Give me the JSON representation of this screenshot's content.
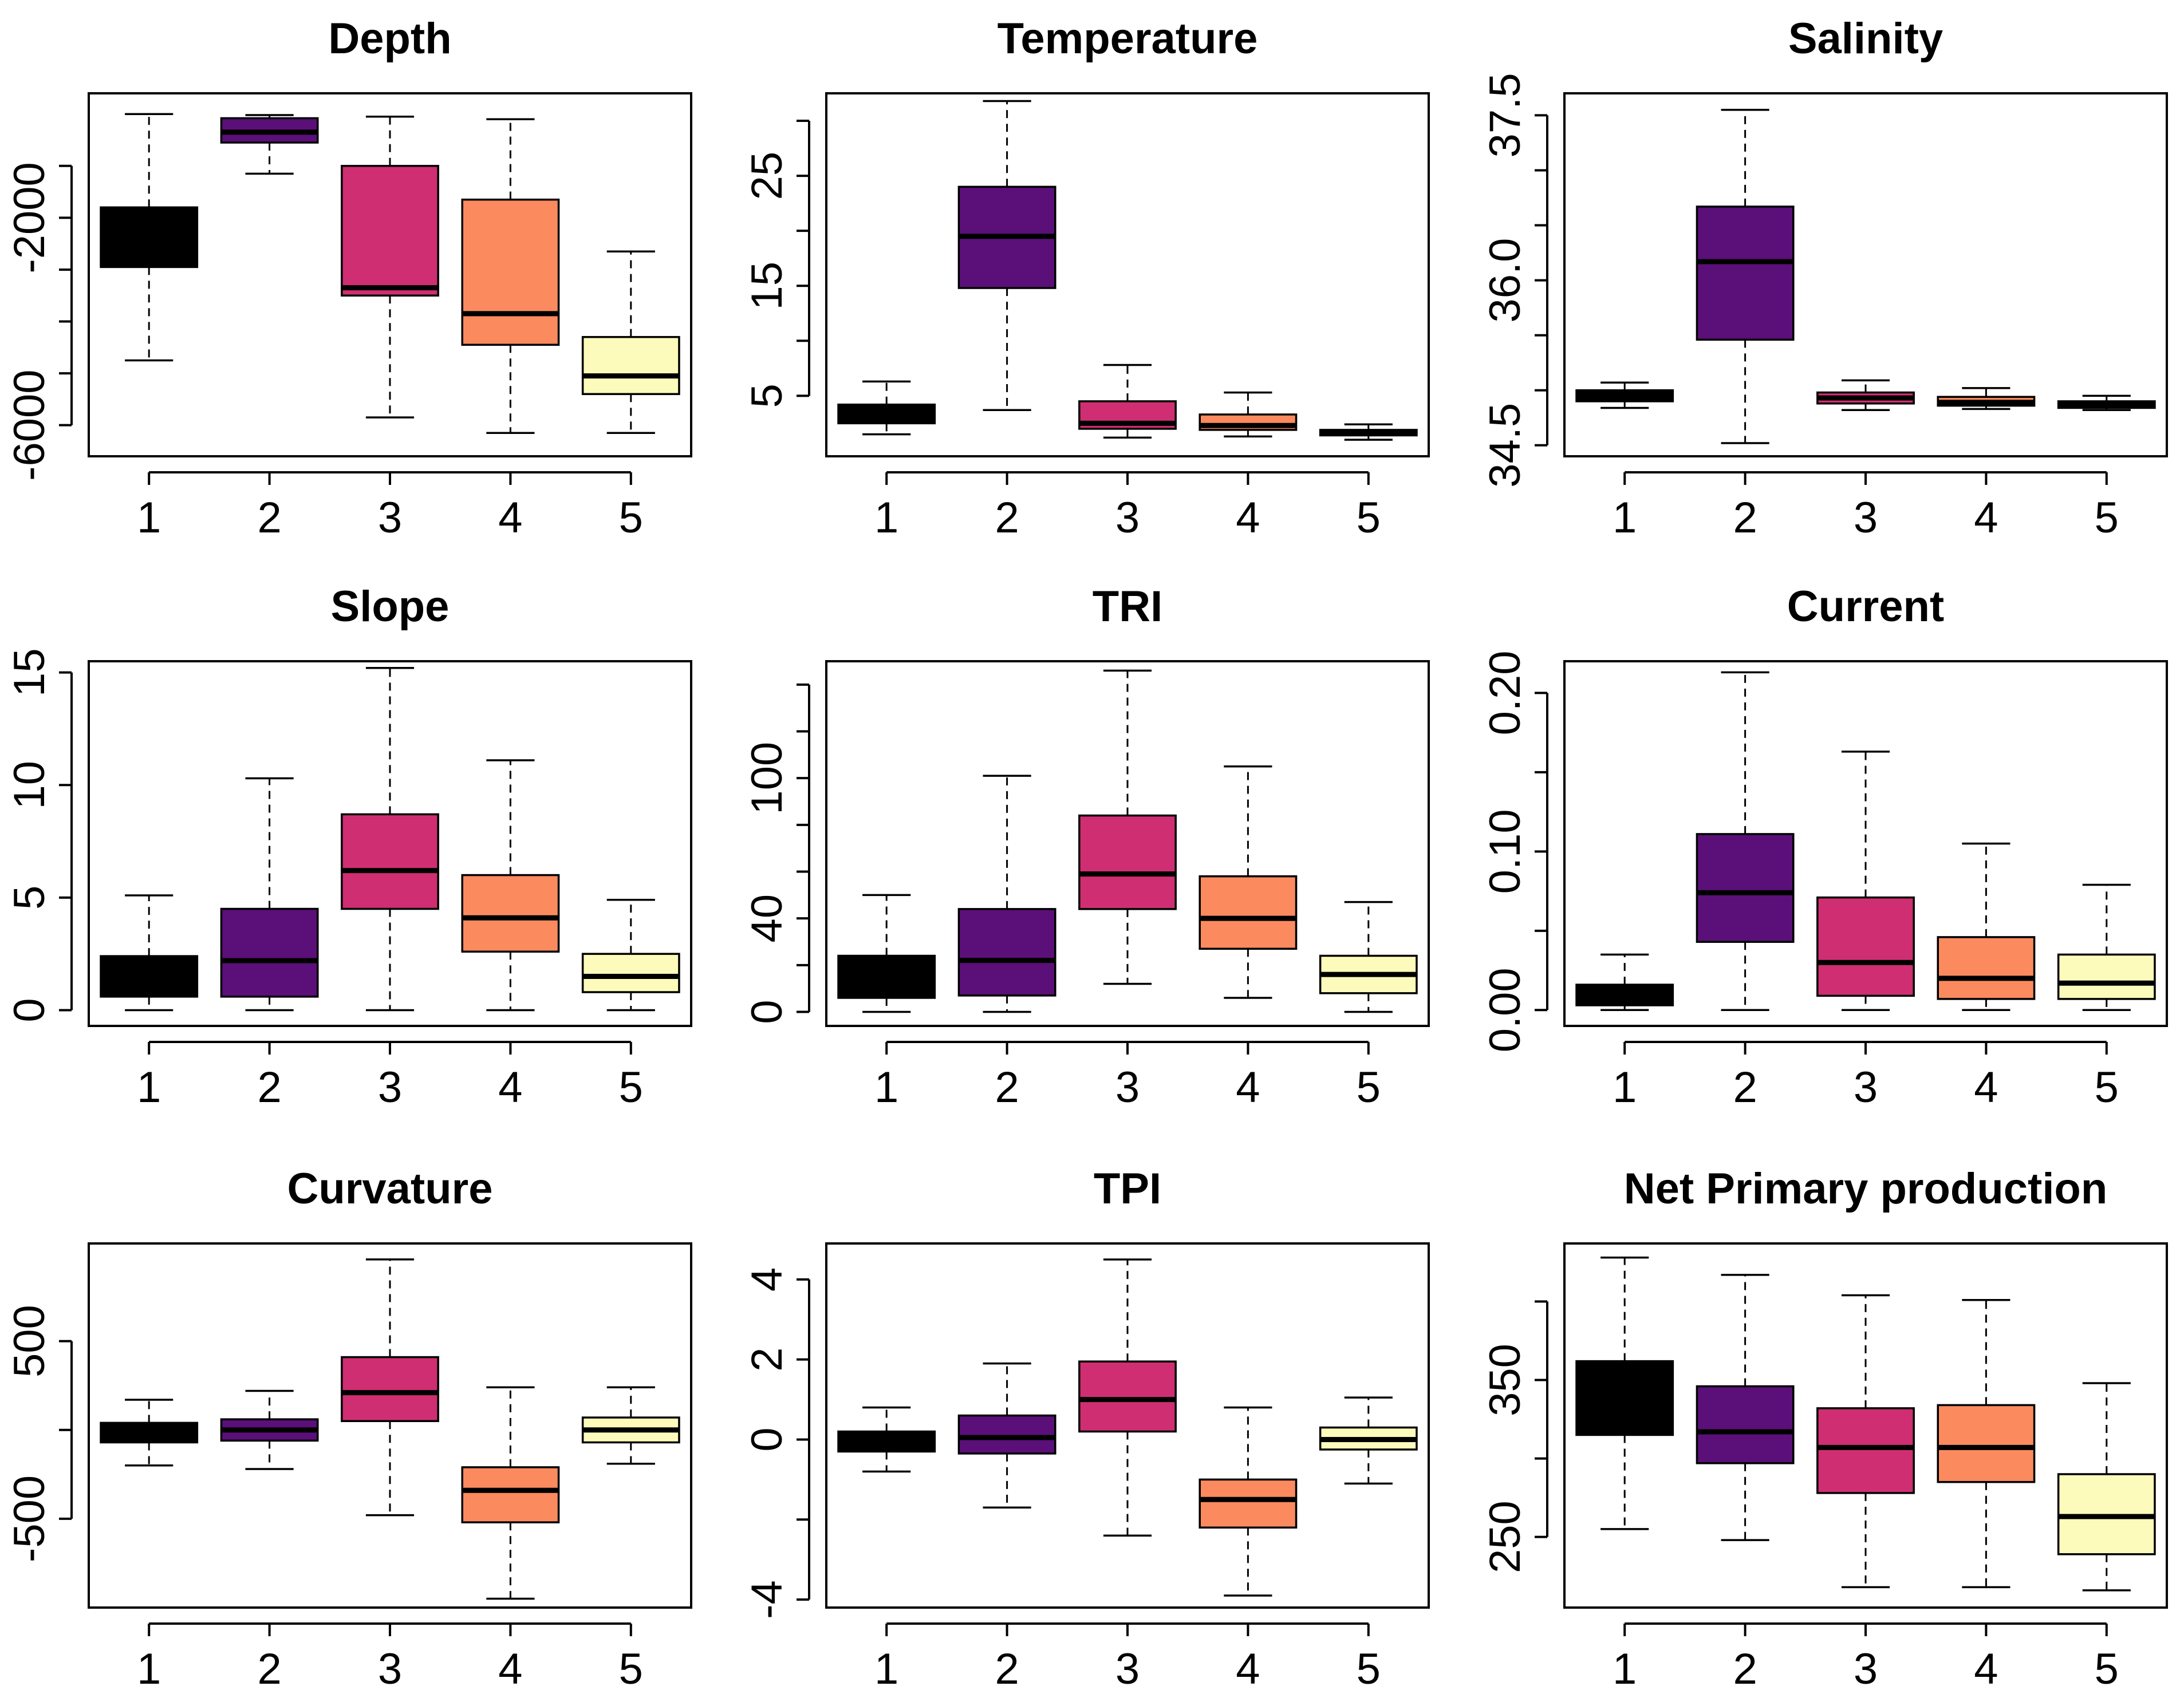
{
  "palette": [
    "#000000",
    "#5b0f78",
    "#cf2f72",
    "#fb8a5e",
    "#fcfbbb"
  ],
  "chart_data": [
    {
      "type": "boxplot",
      "title": "Depth",
      "categories": [
        "1",
        "2",
        "3",
        "4",
        "5"
      ],
      "ylim": [
        -6600,
        400
      ],
      "yticks": [
        -6000,
        -5000,
        -4000,
        -3000,
        -2000,
        -1000
      ],
      "ytick_labels": [
        "-6000",
        "",
        "",
        "",
        "-2000",
        ""
      ],
      "boxes": [
        {
          "min": -4750,
          "q1": -2950,
          "median": -2500,
          "q3": -1800,
          "max": 0
        },
        {
          "min": -1150,
          "q1": -550,
          "median": -350,
          "q3": -80,
          "max": -20
        },
        {
          "min": -5850,
          "q1": -3500,
          "median": -3350,
          "q3": -1000,
          "max": -50
        },
        {
          "min": -6150,
          "q1": -4450,
          "median": -3850,
          "q3": -1650,
          "max": -100
        },
        {
          "min": -6150,
          "q1": -5400,
          "median": -5050,
          "q3": -4300,
          "max": -2650
        }
      ]
    },
    {
      "type": "boxplot",
      "title": "Temperature",
      "categories": [
        "1",
        "2",
        "3",
        "4",
        "5"
      ],
      "ylim": [
        -0.5,
        32.5
      ],
      "yticks": [
        5,
        10,
        15,
        20,
        25,
        30
      ],
      "ytick_labels": [
        "5",
        "",
        "15",
        "",
        "25",
        ""
      ],
      "boxes": [
        {
          "min": 1.5,
          "q1": 2.5,
          "median": 3.5,
          "q3": 4.2,
          "max": 6.3
        },
        {
          "min": 3.7,
          "q1": 14.8,
          "median": 19.5,
          "q3": 24,
          "max": 31.8
        },
        {
          "min": 1.2,
          "q1": 2,
          "median": 2.5,
          "q3": 4.5,
          "max": 7.8
        },
        {
          "min": 1.3,
          "q1": 1.9,
          "median": 2.3,
          "q3": 3.3,
          "max": 5.3
        },
        {
          "min": 1,
          "q1": 1.4,
          "median": 1.6,
          "q3": 1.9,
          "max": 2.4
        }
      ]
    },
    {
      "type": "boxplot",
      "title": "Salinity",
      "categories": [
        "1",
        "2",
        "3",
        "4",
        "5"
      ],
      "ylim": [
        34.4,
        37.7
      ],
      "yticks": [
        34.5,
        35.0,
        35.5,
        36.0,
        36.5,
        37.0,
        37.5
      ],
      "ytick_labels": [
        "34.5",
        "",
        "",
        "36.0",
        "",
        "",
        "37.5"
      ],
      "boxes": [
        {
          "min": 34.84,
          "q1": 34.9,
          "median": 34.96,
          "q3": 35.0,
          "max": 35.07
        },
        {
          "min": 34.52,
          "q1": 35.46,
          "median": 36.17,
          "q3": 36.67,
          "max": 37.55
        },
        {
          "min": 34.82,
          "q1": 34.88,
          "median": 34.93,
          "q3": 34.98,
          "max": 35.09
        },
        {
          "min": 34.83,
          "q1": 34.86,
          "median": 34.89,
          "q3": 34.94,
          "max": 35.02
        },
        {
          "min": 34.82,
          "q1": 34.84,
          "median": 34.87,
          "q3": 34.9,
          "max": 34.95
        }
      ]
    },
    {
      "type": "boxplot",
      "title": "Slope",
      "categories": [
        "1",
        "2",
        "3",
        "4",
        "5"
      ],
      "ylim": [
        -0.7,
        15.5
      ],
      "yticks": [
        0,
        5,
        10,
        15
      ],
      "ytick_labels": [
        "0",
        "5",
        "10",
        "15"
      ],
      "boxes": [
        {
          "min": 0,
          "q1": 0.6,
          "median": 1.5,
          "q3": 2.4,
          "max": 5.1
        },
        {
          "min": 0,
          "q1": 0.6,
          "median": 2.2,
          "q3": 4.5,
          "max": 10.3
        },
        {
          "min": 0,
          "q1": 4.5,
          "median": 6.2,
          "q3": 8.7,
          "max": 15.2
        },
        {
          "min": 0,
          "q1": 2.6,
          "median": 4.1,
          "q3": 6.0,
          "max": 11.1
        },
        {
          "min": 0,
          "q1": 0.8,
          "median": 1.5,
          "q3": 2.5,
          "max": 4.9
        }
      ]
    },
    {
      "type": "boxplot",
      "title": "TRI",
      "categories": [
        "1",
        "2",
        "3",
        "4",
        "5"
      ],
      "ylim": [
        -6,
        150
      ],
      "yticks": [
        0,
        20,
        40,
        60,
        80,
        100,
        120,
        140
      ],
      "ytick_labels": [
        "0",
        "",
        "40",
        "",
        "",
        "100",
        "",
        ""
      ],
      "boxes": [
        {
          "min": 0,
          "q1": 6,
          "median": 15,
          "q3": 24,
          "max": 50
        },
        {
          "min": 0,
          "q1": 7,
          "median": 22,
          "q3": 44,
          "max": 101
        },
        {
          "min": 12,
          "q1": 44,
          "median": 59,
          "q3": 84,
          "max": 146
        },
        {
          "min": 6,
          "q1": 27,
          "median": 40,
          "q3": 58,
          "max": 105
        },
        {
          "min": 0,
          "q1": 8,
          "median": 16,
          "q3": 24,
          "max": 47
        }
      ]
    },
    {
      "type": "boxplot",
      "title": "Current",
      "categories": [
        "1",
        "2",
        "3",
        "4",
        "5"
      ],
      "ylim": [
        -0.01,
        0.22
      ],
      "yticks": [
        0.0,
        0.05,
        0.1,
        0.15,
        0.2
      ],
      "ytick_labels": [
        "0.00",
        "",
        "0.10",
        "",
        "0.20"
      ],
      "boxes": [
        {
          "min": 0,
          "q1": 0.003,
          "median": 0.008,
          "q3": 0.016,
          "max": 0.035
        },
        {
          "min": 0,
          "q1": 0.043,
          "median": 0.074,
          "q3": 0.111,
          "max": 0.213
        },
        {
          "min": 0,
          "q1": 0.009,
          "median": 0.03,
          "q3": 0.071,
          "max": 0.163
        },
        {
          "min": 0,
          "q1": 0.007,
          "median": 0.02,
          "q3": 0.046,
          "max": 0.105
        },
        {
          "min": 0,
          "q1": 0.007,
          "median": 0.017,
          "q3": 0.035,
          "max": 0.079
        }
      ]
    },
    {
      "type": "boxplot",
      "title": "Curvature",
      "categories": [
        "1",
        "2",
        "3",
        "4",
        "5"
      ],
      "ylim": [
        -1000,
        1050
      ],
      "yticks": [
        -500,
        0,
        500
      ],
      "ytick_labels": [
        "-500",
        "",
        "500"
      ],
      "boxes": [
        {
          "min": -200,
          "q1": -70,
          "median": 0,
          "q3": 40,
          "max": 170
        },
        {
          "min": -220,
          "q1": -60,
          "median": 0,
          "q3": 60,
          "max": 220
        },
        {
          "min": -480,
          "q1": 50,
          "median": 210,
          "q3": 410,
          "max": 960
        },
        {
          "min": -950,
          "q1": -520,
          "median": -340,
          "q3": -210,
          "max": 240
        },
        {
          "min": -190,
          "q1": -70,
          "median": 0,
          "q3": 70,
          "max": 240
        }
      ]
    },
    {
      "type": "boxplot",
      "title": "TPI",
      "categories": [
        "1",
        "2",
        "3",
        "4",
        "5"
      ],
      "ylim": [
        -4.2,
        4.9
      ],
      "yticks": [
        -4,
        -2,
        0,
        2,
        4
      ],
      "ytick_labels": [
        "-4",
        "",
        "0",
        "2",
        "4"
      ],
      "boxes": [
        {
          "min": -0.8,
          "q1": -0.3,
          "median": -0.05,
          "q3": 0.2,
          "max": 0.8
        },
        {
          "min": -1.7,
          "q1": -0.35,
          "median": 0.05,
          "q3": 0.6,
          "max": 1.9
        },
        {
          "min": -2.4,
          "q1": 0.2,
          "median": 1.0,
          "q3": 1.95,
          "max": 4.5
        },
        {
          "min": -3.9,
          "q1": -2.2,
          "median": -1.5,
          "q3": -1.0,
          "max": 0.8
        },
        {
          "min": -1.1,
          "q1": -0.25,
          "median": 0.0,
          "q3": 0.3,
          "max": 1.05
        }
      ]
    },
    {
      "type": "boxplot",
      "title": "Net Primary production",
      "categories": [
        "1",
        "2",
        "3",
        "4",
        "5"
      ],
      "ylim": [
        205,
        437
      ],
      "yticks": [
        250,
        300,
        350,
        400
      ],
      "ytick_labels": [
        "250",
        "",
        "350",
        ""
      ],
      "boxes": [
        {
          "min": 255,
          "q1": 315,
          "median": 340,
          "q3": 362,
          "max": 428
        },
        {
          "min": 248,
          "q1": 297,
          "median": 317,
          "q3": 346,
          "max": 417
        },
        {
          "min": 218,
          "q1": 278,
          "median": 307,
          "q3": 332,
          "max": 404
        },
        {
          "min": 218,
          "q1": 285,
          "median": 307,
          "q3": 334,
          "max": 401
        },
        {
          "min": 216,
          "q1": 239,
          "median": 263,
          "q3": 290,
          "max": 348
        }
      ]
    }
  ]
}
